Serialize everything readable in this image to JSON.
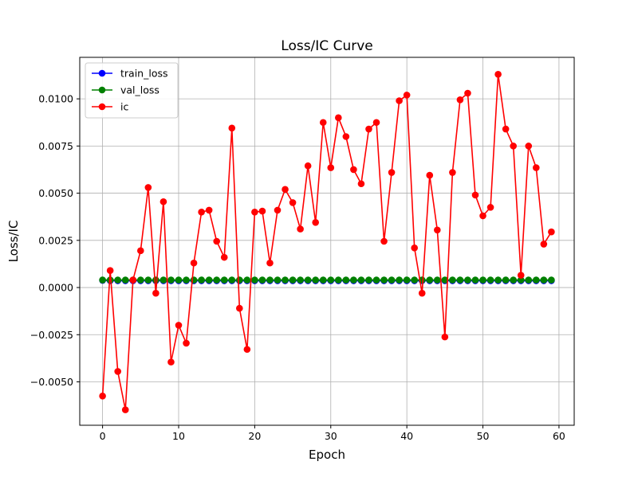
{
  "chart_data": {
    "type": "line",
    "title": "Loss/IC Curve",
    "xlabel": "Epoch",
    "ylabel": "Loss/IC",
    "xlim": [
      -3,
      62
    ],
    "ylim": [
      -0.0073,
      0.0122
    ],
    "xticks": [
      0,
      10,
      20,
      30,
      40,
      50,
      60
    ],
    "xtick_labels": [
      "0",
      "10",
      "20",
      "30",
      "40",
      "50",
      "60"
    ],
    "yticks": [
      -0.005,
      -0.0025,
      0,
      0.0025,
      0.005,
      0.0075,
      0.01
    ],
    "ytick_labels": [
      "−0.0050",
      "−0.0025",
      "0.0000",
      "0.0025",
      "0.0050",
      "0.0075",
      "0.0100"
    ],
    "grid": true,
    "legend_position": "top-left",
    "x": [
      0,
      1,
      2,
      3,
      4,
      5,
      6,
      7,
      8,
      9,
      10,
      11,
      12,
      13,
      14,
      15,
      16,
      17,
      18,
      19,
      20,
      21,
      22,
      23,
      24,
      25,
      26,
      27,
      28,
      29,
      30,
      31,
      32,
      33,
      34,
      35,
      36,
      37,
      38,
      39,
      40,
      41,
      42,
      43,
      44,
      45,
      46,
      47,
      48,
      49,
      50,
      51,
      52,
      53,
      54,
      55,
      56,
      57,
      58,
      59
    ],
    "series": [
      {
        "name": "train_loss",
        "color": "#0000ff",
        "values": [
          0.00038,
          0.00036,
          0.00036,
          0.00036,
          0.00036,
          0.00036,
          0.00036,
          0.00036,
          0.00036,
          0.00036,
          0.00036,
          0.00036,
          0.00036,
          0.00036,
          0.00036,
          0.00036,
          0.00036,
          0.00036,
          0.00036,
          0.00036,
          0.00036,
          0.00036,
          0.00036,
          0.00036,
          0.00036,
          0.00036,
          0.00036,
          0.00036,
          0.00036,
          0.00036,
          0.00036,
          0.00036,
          0.00036,
          0.00036,
          0.00036,
          0.00036,
          0.00036,
          0.00036,
          0.00036,
          0.00036,
          0.00036,
          0.00036,
          0.00036,
          0.00036,
          0.00036,
          0.00036,
          0.00036,
          0.00036,
          0.00036,
          0.00036,
          0.00036,
          0.00036,
          0.00036,
          0.00036,
          0.00036,
          0.00036,
          0.00036,
          0.00036,
          0.00036,
          0.00036
        ]
      },
      {
        "name": "val_loss",
        "color": "#008000",
        "values": [
          0.0004,
          0.0004,
          0.0004,
          0.0004,
          0.0004,
          0.0004,
          0.0004,
          0.0004,
          0.0004,
          0.0004,
          0.0004,
          0.0004,
          0.0004,
          0.0004,
          0.0004,
          0.0004,
          0.0004,
          0.0004,
          0.0004,
          0.0004,
          0.0004,
          0.0004,
          0.0004,
          0.0004,
          0.0004,
          0.0004,
          0.0004,
          0.0004,
          0.0004,
          0.0004,
          0.0004,
          0.0004,
          0.0004,
          0.0004,
          0.0004,
          0.0004,
          0.0004,
          0.0004,
          0.0004,
          0.0004,
          0.0004,
          0.0004,
          0.0004,
          0.0004,
          0.0004,
          0.0004,
          0.0004,
          0.0004,
          0.0004,
          0.0004,
          0.0004,
          0.0004,
          0.0004,
          0.0004,
          0.0004,
          0.0004,
          0.0004,
          0.0004,
          0.0004,
          0.0004
        ]
      },
      {
        "name": "ic",
        "color": "#ff0000",
        "values": [
          -0.00575,
          0.0009,
          -0.00445,
          -0.00648,
          0.0004,
          0.00195,
          0.0053,
          -0.0003,
          0.00455,
          -0.00395,
          -0.002,
          -0.00295,
          0.0013,
          0.004,
          0.0041,
          0.00245,
          0.0016,
          0.00845,
          -0.0011,
          -0.00328,
          0.004,
          0.00405,
          0.0013,
          0.0041,
          0.0052,
          0.0045,
          0.0031,
          0.00645,
          0.00345,
          0.00875,
          0.00635,
          0.009,
          0.008,
          0.00625,
          0.0055,
          0.0084,
          0.00875,
          0.00245,
          0.0061,
          0.0099,
          0.0102,
          0.0021,
          -0.0003,
          0.00595,
          0.00305,
          -0.00262,
          0.0061,
          0.00995,
          0.0103,
          0.0049,
          0.0038,
          0.00425,
          0.0113,
          0.0084,
          0.0075,
          0.00065,
          0.0075,
          0.00635,
          0.0023,
          0.00295
        ]
      }
    ]
  }
}
